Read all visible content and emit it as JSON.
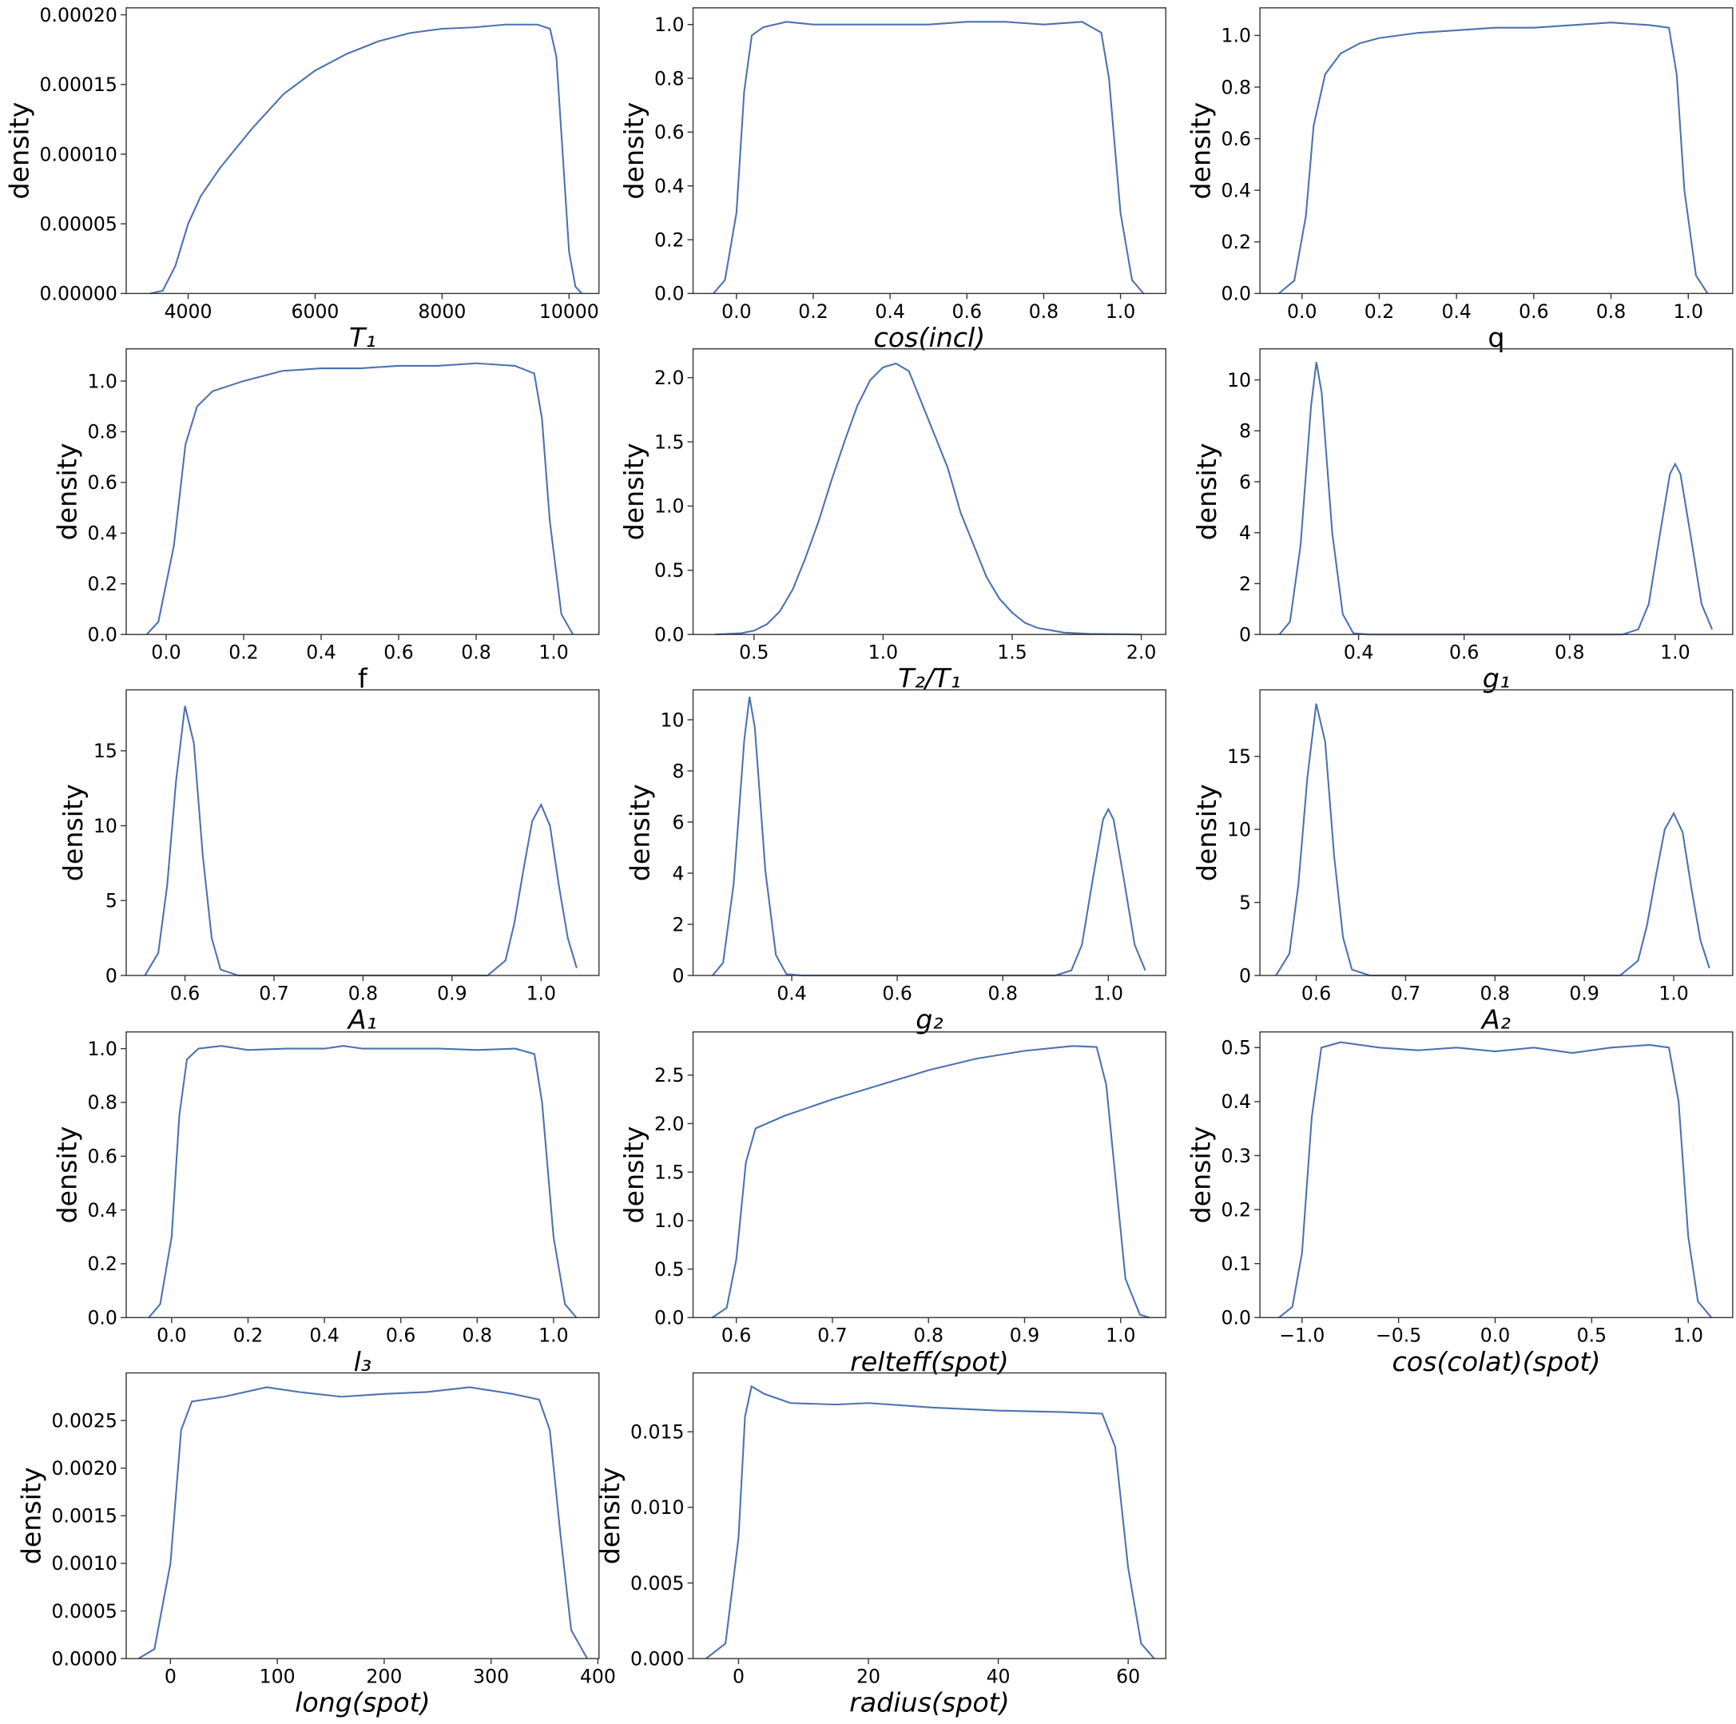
{
  "chart_data": [
    {
      "type": "line",
      "xlabel": "T₁",
      "xlabel_style": "italic",
      "ylabel": "density",
      "color": "#4c72b0",
      "x": [
        3400,
        3600,
        3800,
        4000,
        4200,
        4500,
        5000,
        5500,
        6000,
        6500,
        7000,
        7500,
        8000,
        8500,
        9000,
        9500,
        9700,
        9800,
        9900,
        10000,
        10100,
        10200
      ],
      "values": [
        0,
        2e-06,
        2e-05,
        5e-05,
        7e-05,
        9e-05,
        0.000118,
        0.000143,
        0.00016,
        0.000172,
        0.000181,
        0.000187,
        0.00019,
        0.000191,
        0.000193,
        0.000193,
        0.00019,
        0.00017,
        0.0001,
        3e-05,
        5e-06,
        0
      ],
      "xlim": [
        3024,
        10471
      ],
      "ylim": [
        0,
        0.000205
      ],
      "xticks": [
        4000,
        6000,
        8000,
        10000
      ],
      "yticks": [
        {
          "value": 0,
          "label": "0.00000"
        },
        {
          "value": 5e-05,
          "label": "0.00005"
        },
        {
          "value": 0.0001,
          "label": "0.00010"
        },
        {
          "value": 0.00015,
          "label": "0.00015"
        },
        {
          "value": 0.0002,
          "label": "0.00020"
        }
      ]
    },
    {
      "type": "line",
      "xlabel": "cos(incl)",
      "xlabel_style": "italic",
      "ylabel": "density",
      "color": "#4c72b0",
      "x": [
        -0.06,
        -0.03,
        0,
        0.02,
        0.04,
        0.07,
        0.13,
        0.2,
        0.3,
        0.4,
        0.5,
        0.6,
        0.7,
        0.8,
        0.9,
        0.95,
        0.97,
        1.0,
        1.03,
        1.06
      ],
      "values": [
        0,
        0.05,
        0.3,
        0.75,
        0.96,
        0.99,
        1.01,
        1.0,
        1.0,
        1.0,
        1.0,
        1.01,
        1.01,
        1.0,
        1.01,
        0.97,
        0.8,
        0.3,
        0.05,
        0
      ],
      "xlim": [
        -0.113,
        1.118
      ],
      "ylim": [
        0,
        1.062
      ],
      "xticks": [
        {
          "value": 0,
          "label": "0.0"
        },
        0.2,
        0.4,
        0.6,
        0.8,
        {
          "value": 1,
          "label": "1.0"
        }
      ],
      "yticks": [
        {
          "value": 0,
          "label": "0.0"
        },
        0.2,
        0.4,
        0.6,
        0.8,
        {
          "value": 1,
          "label": "1.0"
        }
      ]
    },
    {
      "type": "line",
      "xlabel": "q",
      "xlabel_style": "normal",
      "ylabel": "density",
      "color": "#4c72b0",
      "x": [
        -0.06,
        -0.02,
        0.01,
        0.03,
        0.06,
        0.1,
        0.15,
        0.2,
        0.3,
        0.4,
        0.5,
        0.6,
        0.7,
        0.8,
        0.9,
        0.95,
        0.97,
        0.99,
        1.02,
        1.05
      ],
      "values": [
        0,
        0.05,
        0.3,
        0.65,
        0.85,
        0.93,
        0.97,
        0.99,
        1.01,
        1.02,
        1.03,
        1.03,
        1.04,
        1.05,
        1.04,
        1.03,
        0.85,
        0.4,
        0.07,
        0
      ],
      "xlim": [
        -0.109,
        1.115
      ],
      "ylim": [
        0,
        1.107
      ],
      "xticks": [
        {
          "value": 0,
          "label": "0.0"
        },
        0.2,
        0.4,
        0.6,
        0.8,
        {
          "value": 1,
          "label": "1.0"
        }
      ],
      "yticks": [
        {
          "value": 0,
          "label": "0.0"
        },
        0.2,
        0.4,
        0.6,
        0.8,
        {
          "value": 1,
          "label": "1.0"
        }
      ]
    },
    {
      "type": "line",
      "xlabel": "f",
      "xlabel_style": "normal",
      "ylabel": "density",
      "color": "#4c72b0",
      "x": [
        -0.05,
        -0.02,
        0.02,
        0.05,
        0.08,
        0.12,
        0.2,
        0.3,
        0.4,
        0.5,
        0.6,
        0.7,
        0.8,
        0.9,
        0.95,
        0.97,
        0.99,
        1.02,
        1.05
      ],
      "values": [
        0,
        0.05,
        0.35,
        0.75,
        0.9,
        0.96,
        1.0,
        1.04,
        1.05,
        1.05,
        1.06,
        1.06,
        1.07,
        1.06,
        1.03,
        0.85,
        0.45,
        0.08,
        0
      ],
      "xlim": [
        -0.103,
        1.117
      ],
      "ylim": [
        0,
        1.127
      ],
      "xticks": [
        {
          "value": 0,
          "label": "0.0"
        },
        0.2,
        0.4,
        0.6,
        0.8,
        {
          "value": 1,
          "label": "1.0"
        }
      ],
      "yticks": [
        {
          "value": 0,
          "label": "0.0"
        },
        0.2,
        0.4,
        0.6,
        0.8,
        {
          "value": 1,
          "label": "1.0"
        }
      ]
    },
    {
      "type": "line",
      "xlabel": "T₂/T₁",
      "xlabel_style": "italic",
      "ylabel": "density",
      "color": "#4c72b0",
      "x": [
        0.35,
        0.45,
        0.5,
        0.55,
        0.6,
        0.65,
        0.7,
        0.75,
        0.8,
        0.85,
        0.9,
        0.95,
        1.0,
        1.05,
        1.1,
        1.15,
        1.2,
        1.25,
        1.3,
        1.35,
        1.4,
        1.45,
        1.5,
        1.55,
        1.6,
        1.7,
        1.8,
        2.0
      ],
      "values": [
        0,
        0.01,
        0.03,
        0.08,
        0.18,
        0.35,
        0.6,
        0.88,
        1.2,
        1.5,
        1.78,
        1.98,
        2.08,
        2.11,
        2.05,
        1.8,
        1.55,
        1.3,
        0.95,
        0.7,
        0.45,
        0.28,
        0.17,
        0.09,
        0.05,
        0.015,
        0.005,
        0
      ],
      "xlim": [
        0.264,
        2.095
      ],
      "ylim": [
        0,
        2.224
      ],
      "xticks": [
        0.5,
        {
          "value": 1,
          "label": "1.0"
        },
        1.5,
        {
          "value": 2,
          "label": "2.0"
        }
      ],
      "yticks": [
        {
          "value": 0,
          "label": "0.0"
        },
        0.5,
        {
          "value": 1,
          "label": "1.0"
        },
        1.5,
        {
          "value": 2,
          "label": "2.0"
        }
      ]
    },
    {
      "type": "line",
      "xlabel": "g₁",
      "xlabel_style": "italic",
      "ylabel": "density",
      "color": "#4c72b0",
      "x": [
        0.25,
        0.27,
        0.29,
        0.31,
        0.32,
        0.33,
        0.35,
        0.37,
        0.39,
        0.42,
        0.9,
        0.93,
        0.95,
        0.97,
        0.99,
        1.0,
        1.01,
        1.03,
        1.05,
        1.07
      ],
      "values": [
        0,
        0.5,
        3.5,
        9,
        10.7,
        9.5,
        4,
        0.8,
        0.05,
        0,
        0,
        0.2,
        1.2,
        3.8,
        6.3,
        6.7,
        6.3,
        3.8,
        1.2,
        0.2
      ],
      "xlim": [
        0.213,
        1.109
      ],
      "ylim": [
        0,
        11.22
      ],
      "xticks": [
        0.4,
        0.6,
        0.8,
        {
          "value": 1,
          "label": "1.0"
        }
      ],
      "yticks": [
        0,
        2,
        4,
        6,
        8,
        10
      ]
    },
    {
      "type": "line",
      "xlabel": "A₁",
      "xlabel_style": "italic",
      "ylabel": "density",
      "color": "#4c72b0",
      "x": [
        0.555,
        0.57,
        0.58,
        0.59,
        0.6,
        0.61,
        0.62,
        0.63,
        0.64,
        0.66,
        0.94,
        0.96,
        0.97,
        0.98,
        0.99,
        1.0,
        1.01,
        1.02,
        1.03,
        1.04
      ],
      "values": [
        0,
        1.5,
        6,
        13,
        18,
        15.5,
        8,
        2.5,
        0.4,
        0,
        0,
        1,
        3.5,
        7,
        10.3,
        11.4,
        10,
        6,
        2.5,
        0.5
      ],
      "xlim": [
        0.534,
        1.065
      ],
      "ylim": [
        0,
        19.07
      ],
      "xticks": [
        0.6,
        0.7,
        0.8,
        0.9,
        {
          "value": 1,
          "label": "1.0"
        }
      ],
      "yticks": [
        0,
        5,
        10,
        15
      ]
    },
    {
      "type": "line",
      "xlabel": "g₂",
      "xlabel_style": "italic",
      "ylabel": "density",
      "color": "#4c72b0",
      "x": [
        0.25,
        0.27,
        0.29,
        0.31,
        0.32,
        0.33,
        0.35,
        0.37,
        0.39,
        0.42,
        0.9,
        0.93,
        0.95,
        0.97,
        0.99,
        1.0,
        1.01,
        1.03,
        1.05,
        1.07
      ],
      "values": [
        0,
        0.5,
        3.6,
        9.2,
        10.9,
        9.7,
        4.1,
        0.8,
        0.05,
        0,
        0,
        0.2,
        1.2,
        3.7,
        6.1,
        6.5,
        6.1,
        3.7,
        1.2,
        0.2
      ],
      "xlim": [
        0.213,
        1.109
      ],
      "ylim": [
        0,
        11.17
      ],
      "xticks": [
        0.4,
        0.6,
        0.8,
        {
          "value": 1,
          "label": "1.0"
        }
      ],
      "yticks": [
        0,
        2,
        4,
        6,
        8,
        10
      ]
    },
    {
      "type": "line",
      "xlabel": "A₂",
      "xlabel_style": "italic",
      "ylabel": "density",
      "color": "#4c72b0",
      "x": [
        0.555,
        0.57,
        0.58,
        0.59,
        0.6,
        0.61,
        0.62,
        0.63,
        0.64,
        0.66,
        0.94,
        0.96,
        0.97,
        0.98,
        0.99,
        1.0,
        1.01,
        1.02,
        1.03,
        1.04
      ],
      "values": [
        0,
        1.5,
        6.2,
        13.5,
        18.6,
        16,
        8.2,
        2.6,
        0.4,
        0,
        0,
        1,
        3.4,
        6.8,
        10,
        11.1,
        9.8,
        5.9,
        2.4,
        0.5
      ],
      "xlim": [
        0.537,
        1.066
      ],
      "ylim": [
        0,
        19.55
      ],
      "xticks": [
        0.6,
        0.7,
        0.8,
        0.9,
        {
          "value": 1,
          "label": "1.0"
        }
      ],
      "yticks": [
        0,
        5,
        10,
        15
      ]
    },
    {
      "type": "line",
      "xlabel": "l₃",
      "xlabel_style": "italic",
      "ylabel": "density",
      "color": "#4c72b0",
      "x": [
        -0.06,
        -0.03,
        0,
        0.02,
        0.04,
        0.07,
        0.13,
        0.2,
        0.3,
        0.4,
        0.45,
        0.5,
        0.6,
        0.7,
        0.8,
        0.9,
        0.95,
        0.97,
        1.0,
        1.03,
        1.06
      ],
      "values": [
        0,
        0.05,
        0.3,
        0.75,
        0.96,
        1.0,
        1.01,
        0.995,
        1.0,
        1.0,
        1.01,
        1.0,
        1.0,
        1.0,
        0.995,
        1.0,
        0.98,
        0.8,
        0.3,
        0.05,
        0
      ],
      "xlim": [
        -0.119,
        1.119
      ],
      "ylim": [
        0,
        1.062
      ],
      "xticks": [
        {
          "value": 0,
          "label": "0.0"
        },
        0.2,
        0.4,
        0.6,
        0.8,
        {
          "value": 1,
          "label": "1.0"
        }
      ],
      "yticks": [
        {
          "value": 0,
          "label": "0.0"
        },
        0.2,
        0.4,
        0.6,
        0.8,
        {
          "value": 1,
          "label": "1.0"
        }
      ]
    },
    {
      "type": "line",
      "xlabel": "relteff(spot)",
      "xlabel_style": "italic",
      "ylabel": "density",
      "color": "#4c72b0",
      "x": [
        0.575,
        0.59,
        0.6,
        0.61,
        0.62,
        0.65,
        0.7,
        0.75,
        0.8,
        0.85,
        0.9,
        0.95,
        0.975,
        0.985,
        0.995,
        1.005,
        1.02,
        1.03
      ],
      "values": [
        0,
        0.1,
        0.6,
        1.6,
        1.95,
        2.08,
        2.25,
        2.4,
        2.55,
        2.67,
        2.75,
        2.8,
        2.79,
        2.4,
        1.4,
        0.4,
        0.03,
        0
      ],
      "xlim": [
        0.555,
        1.047
      ],
      "ylim": [
        0,
        2.945
      ],
      "xticks": [
        0.6,
        0.7,
        0.8,
        0.9,
        {
          "value": 1,
          "label": "1.0"
        }
      ],
      "yticks": [
        {
          "value": 0,
          "label": "0.0"
        },
        0.5,
        {
          "value": 1,
          "label": "1.0"
        },
        1.5,
        {
          "value": 2,
          "label": "2.0"
        },
        2.5
      ]
    },
    {
      "type": "line",
      "xlabel": "cos(colat)(spot)",
      "xlabel_style": "italic",
      "ylabel": "density",
      "color": "#4c72b0",
      "x": [
        -1.12,
        -1.05,
        -1.0,
        -0.95,
        -0.9,
        -0.8,
        -0.6,
        -0.4,
        -0.2,
        0,
        0.2,
        0.4,
        0.6,
        0.8,
        0.9,
        0.95,
        1.0,
        1.05,
        1.12
      ],
      "values": [
        0,
        0.02,
        0.12,
        0.37,
        0.5,
        0.51,
        0.5,
        0.495,
        0.5,
        0.493,
        0.5,
        0.49,
        0.5,
        0.505,
        0.5,
        0.4,
        0.15,
        0.03,
        0
      ],
      "xlim": [
        -1.218,
        1.23
      ],
      "ylim": [
        0,
        0.529
      ],
      "xticks": [
        {
          "value": -1,
          "label": "−1.0"
        },
        {
          "value": -0.5,
          "label": "−0.5"
        },
        {
          "value": 0,
          "label": "0.0"
        },
        0.5,
        {
          "value": 1,
          "label": "1.0"
        }
      ],
      "yticks": [
        {
          "value": 0,
          "label": "0.0"
        },
        0.1,
        0.2,
        0.3,
        0.4,
        0.5
      ]
    },
    {
      "type": "line",
      "xlabel": "long(spot)",
      "xlabel_style": "italic",
      "ylabel": "density",
      "color": "#4c72b0",
      "x": [
        -30,
        -15,
        0,
        10,
        20,
        50,
        90,
        120,
        160,
        200,
        240,
        280,
        320,
        345,
        355,
        365,
        375,
        390
      ],
      "values": [
        0,
        0.0001,
        0.001,
        0.0024,
        0.0027,
        0.00275,
        0.00285,
        0.0028,
        0.00275,
        0.00278,
        0.0028,
        0.00285,
        0.00278,
        0.00272,
        0.0024,
        0.0013,
        0.0003,
        0
      ],
      "xlim": [
        -41.4,
        401
      ],
      "ylim": [
        0,
        0.003
      ],
      "xticks": [
        0,
        100,
        200,
        300,
        400
      ],
      "yticks": [
        {
          "value": 0,
          "label": "0.0000"
        },
        0.0005,
        {
          "value": 0.001,
          "label": "0.0010"
        },
        0.0015,
        {
          "value": 0.002,
          "label": "0.0020"
        },
        0.0025
      ]
    },
    {
      "type": "line",
      "xlabel": "radius(spot)",
      "xlabel_style": "italic",
      "ylabel": "density",
      "color": "#4c72b0",
      "x": [
        -5,
        -2,
        0,
        1,
        2,
        4,
        8,
        15,
        20,
        30,
        40,
        50,
        56,
        58,
        60,
        62,
        64
      ],
      "values": [
        0,
        0.001,
        0.008,
        0.016,
        0.018,
        0.0175,
        0.0169,
        0.0168,
        0.0169,
        0.0166,
        0.0164,
        0.0163,
        0.0162,
        0.014,
        0.006,
        0.001,
        0
      ],
      "xlim": [
        -7,
        65.8
      ],
      "ylim": [
        0,
        0.01889
      ],
      "xticks": [
        0,
        20,
        40,
        60
      ],
      "yticks": [
        {
          "value": 0,
          "label": "0.000"
        },
        0.005,
        {
          "value": 0.01,
          "label": "0.010"
        },
        0.015
      ]
    }
  ]
}
